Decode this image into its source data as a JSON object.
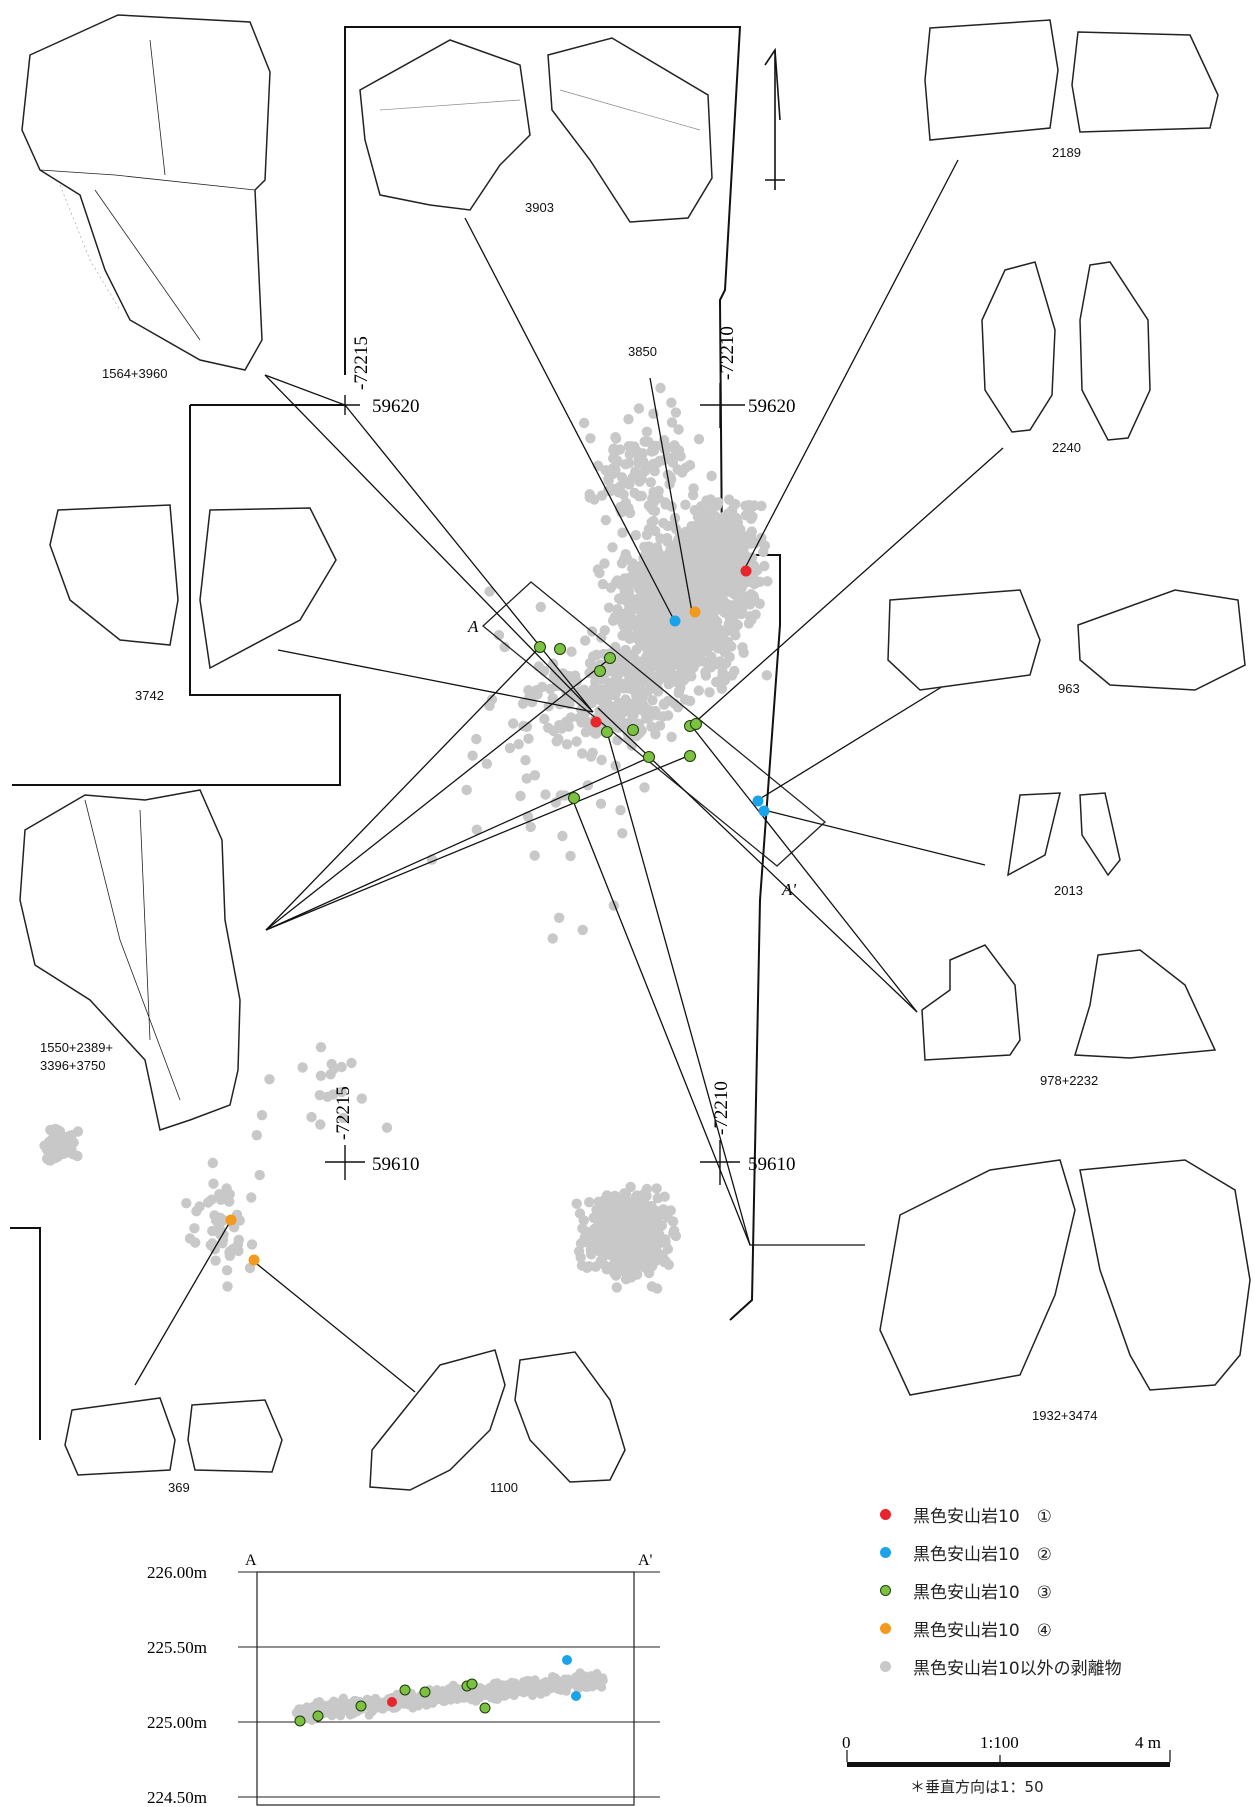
{
  "colors": {
    "group1": "#e8242c",
    "group2": "#1aa3e8",
    "group3": "#7cc242",
    "group4": "#f39a1e",
    "other": "#c8c8c8"
  },
  "artifacts": {
    "a1564": "1564+3960",
    "a3903": "3903",
    "a2189": "2189",
    "a2240": "2240",
    "a3742": "3742",
    "a963": "963",
    "a2013": "2013",
    "a978": "978+2232",
    "a1550_l1": "1550+2389+",
    "a1550_l2": "3396+3750",
    "a1932": "1932+3474",
    "a369": "369",
    "a1100": "1100",
    "a3850": "3850"
  },
  "grid": {
    "x_upper_left": "-72215",
    "y_upper_left": "59620",
    "x_upper_right": "-72210",
    "y_upper_right": "59620",
    "x_lower_left": "-72215",
    "y_lower_left": "59610",
    "x_lower_right": "-72210",
    "y_lower_right": "59610"
  },
  "section": {
    "label_a": "A",
    "label_a_prime": "A'",
    "elevations": [
      "226.00m",
      "225.50m",
      "225.00m",
      "224.50m"
    ]
  },
  "legend": [
    {
      "label": "黒色安山岩10　①",
      "color": "#e8242c"
    },
    {
      "label": "黒色安山岩10　②",
      "color": "#1aa3e8"
    },
    {
      "label": "黒色安山岩10　③",
      "color": "#7cc242"
    },
    {
      "label": "黒色安山岩10　④",
      "color": "#f39a1e"
    },
    {
      "label": "黒色安山岩10以外の剥離物",
      "color": "#c8c8c8"
    }
  ],
  "scale": {
    "zero": "0",
    "ratio": "1:100",
    "max": "4 m",
    "vertical_note": "＊垂直方向は1：50"
  }
}
